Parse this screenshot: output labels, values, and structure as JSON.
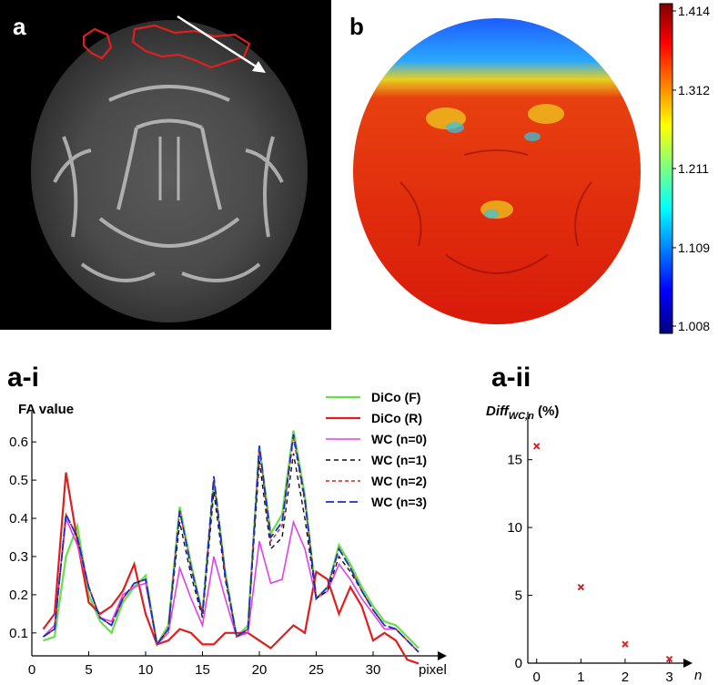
{
  "panels": {
    "a": {
      "label": "a"
    },
    "b": {
      "label": "b"
    },
    "ai": {
      "label": "a-i"
    },
    "aii": {
      "label": "a-ii"
    }
  },
  "colorbar": {
    "ticks": [
      "1.414",
      "1.312",
      "1.211",
      "1.109",
      "1.008"
    ],
    "values": [
      1.414,
      1.312,
      1.211,
      1.109,
      1.008
    ],
    "colormap": [
      "#7f0000",
      "#ff0000",
      "#ffff00",
      "#00ffff",
      "#0000ff",
      "#00007f"
    ]
  },
  "colors": {
    "dico_f": "#66e04a",
    "dico_r": "#dc1f1f",
    "wc0": "#e040e8",
    "wc1": "#111111",
    "wc2": "#e02020",
    "wc3": "#1a2ec8",
    "roi": "#e02020",
    "arrow": "#ffffff"
  },
  "chart_data": [
    {
      "type": "line",
      "ylabel": "FA value",
      "xlabel": "pixel",
      "xlim": [
        0,
        36
      ],
      "ylim": [
        0.04,
        0.66
      ],
      "xticks": [
        "0",
        "5",
        "10",
        "15",
        "20",
        "25",
        "30"
      ],
      "yticks": [
        "0.1",
        "0.2",
        "0.3",
        "0.4",
        "0.5",
        "0.6"
      ],
      "legend_position": "top-right",
      "x": [
        1,
        2,
        3,
        4,
        5,
        6,
        7,
        8,
        9,
        10,
        11,
        12,
        13,
        14,
        15,
        16,
        17,
        18,
        19,
        20,
        21,
        22,
        23,
        24,
        25,
        26,
        27,
        28,
        29,
        30,
        31,
        32,
        33,
        34
      ],
      "series": [
        {
          "name": "DiCo (F)",
          "values": [
            0.08,
            0.09,
            0.3,
            0.38,
            0.2,
            0.13,
            0.1,
            0.18,
            0.22,
            0.25,
            0.07,
            0.12,
            0.43,
            0.28,
            0.15,
            0.5,
            0.26,
            0.09,
            0.12,
            0.59,
            0.36,
            0.41,
            0.63,
            0.46,
            0.19,
            0.22,
            0.33,
            0.28,
            0.22,
            0.17,
            0.13,
            0.12,
            0.09,
            0.06
          ]
        },
        {
          "name": "DiCo (R)",
          "values": [
            0.11,
            0.15,
            0.52,
            0.34,
            0.18,
            0.15,
            0.17,
            0.21,
            0.28,
            0.15,
            0.07,
            0.08,
            0.11,
            0.1,
            0.07,
            0.07,
            0.1,
            0.1,
            0.1,
            0.08,
            0.06,
            0.09,
            0.12,
            0.1,
            0.26,
            0.24,
            0.15,
            0.22,
            0.17,
            0.08,
            0.1,
            0.08,
            0.03,
            0.02
          ]
        },
        {
          "name": "WC (n=0)",
          "values": [
            0.09,
            0.12,
            0.4,
            0.33,
            0.22,
            0.14,
            0.13,
            0.2,
            0.22,
            0.23,
            0.07,
            0.1,
            0.27,
            0.19,
            0.12,
            0.3,
            0.19,
            0.09,
            0.1,
            0.34,
            0.23,
            0.24,
            0.39,
            0.32,
            0.19,
            0.21,
            0.28,
            0.24,
            0.19,
            0.15,
            0.11,
            0.11,
            0.08,
            0.05
          ]
        },
        {
          "name": "WC (n=1)",
          "values": [
            0.09,
            0.11,
            0.41,
            0.35,
            0.22,
            0.14,
            0.12,
            0.19,
            0.23,
            0.24,
            0.07,
            0.11,
            0.39,
            0.25,
            0.14,
            0.47,
            0.24,
            0.09,
            0.11,
            0.55,
            0.32,
            0.35,
            0.57,
            0.4,
            0.19,
            0.21,
            0.3,
            0.26,
            0.21,
            0.16,
            0.12,
            0.11,
            0.08,
            0.05
          ]
        },
        {
          "name": "WC (n=2)",
          "values": [
            0.09,
            0.11,
            0.41,
            0.35,
            0.22,
            0.14,
            0.12,
            0.19,
            0.23,
            0.24,
            0.07,
            0.11,
            0.42,
            0.27,
            0.15,
            0.5,
            0.25,
            0.09,
            0.11,
            0.58,
            0.34,
            0.38,
            0.61,
            0.44,
            0.19,
            0.22,
            0.32,
            0.27,
            0.21,
            0.16,
            0.12,
            0.11,
            0.08,
            0.05
          ]
        },
        {
          "name": "WC (n=3)",
          "values": [
            0.09,
            0.11,
            0.41,
            0.35,
            0.22,
            0.14,
            0.12,
            0.19,
            0.23,
            0.24,
            0.07,
            0.11,
            0.42,
            0.27,
            0.15,
            0.51,
            0.25,
            0.09,
            0.11,
            0.59,
            0.35,
            0.39,
            0.62,
            0.45,
            0.19,
            0.22,
            0.32,
            0.27,
            0.21,
            0.16,
            0.12,
            0.11,
            0.08,
            0.05
          ]
        }
      ]
    },
    {
      "type": "scatter",
      "ylabel_main": "Diff",
      "ylabel_sub": "WC,n",
      "ylabel_unit": " (%)",
      "xlabel": "n",
      "xlim": [
        -0.2,
        3.4
      ],
      "ylim": [
        0,
        18
      ],
      "xticks": [
        "0",
        "1",
        "2",
        "3"
      ],
      "yticks": [
        "0",
        "5",
        "10",
        "15"
      ],
      "x": [
        0,
        1,
        2,
        3
      ],
      "values": [
        16.0,
        5.6,
        1.4,
        0.3
      ]
    }
  ]
}
